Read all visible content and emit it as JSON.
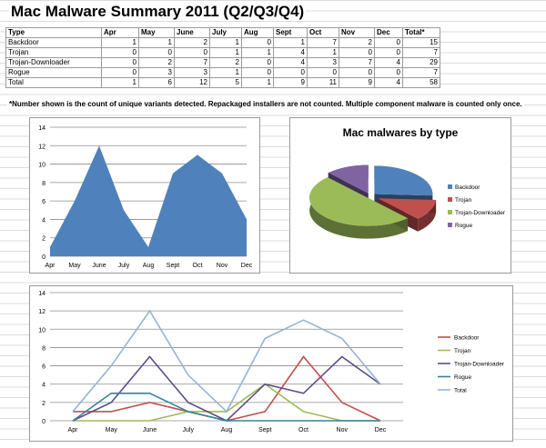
{
  "title": "Mac Malware Summary 2011 (Q2/Q3/Q4)",
  "table": {
    "headers": [
      "Type",
      "Apr",
      "May",
      "June",
      "July",
      "Aug",
      "Sept",
      "Oct",
      "Nov",
      "Dec",
      "Total*"
    ],
    "rows": [
      [
        "Backdoor",
        "1",
        "1",
        "2",
        "1",
        "0",
        "1",
        "7",
        "2",
        "0",
        "15"
      ],
      [
        "Trojan",
        "0",
        "0",
        "0",
        "1",
        "1",
        "4",
        "1",
        "0",
        "0",
        "7"
      ],
      [
        "Trojan-Downloader",
        "0",
        "2",
        "7",
        "2",
        "0",
        "4",
        "3",
        "7",
        "4",
        "29"
      ],
      [
        "Rogue",
        "0",
        "3",
        "3",
        "1",
        "0",
        "0",
        "0",
        "0",
        "0",
        "7"
      ],
      [
        "Total",
        "1",
        "6",
        "12",
        "5",
        "1",
        "9",
        "11",
        "9",
        "4",
        "58"
      ]
    ]
  },
  "note": "*Number shown is the count of unique variants detected. Repackaged installers are not counted. Multiple component malware is counted only once.",
  "chart_data": [
    {
      "type": "area",
      "categories": [
        "Apr",
        "May",
        "June",
        "July",
        "Aug",
        "Sept",
        "Oct",
        "Nov",
        "Dec"
      ],
      "series": [
        {
          "values": [
            1,
            6,
            12,
            5,
            1,
            9,
            11,
            9,
            4
          ],
          "color": "#4f81bd"
        }
      ],
      "ylim": [
        0,
        14
      ],
      "yticks": [
        0,
        2,
        4,
        6,
        8,
        10,
        12,
        14
      ],
      "grid": true
    },
    {
      "type": "pie",
      "title": "Mac malwares by type",
      "labels": [
        "Backdoor",
        "Trojan",
        "Trojan-Downloader",
        "Rogue"
      ],
      "values": [
        15,
        7,
        29,
        7
      ],
      "colors": [
        "#4f81bd",
        "#c0504d",
        "#9bbb59",
        "#8064a2"
      ],
      "legend": "right"
    },
    {
      "type": "line",
      "categories": [
        "Apr",
        "May",
        "June",
        "July",
        "Aug",
        "Sept",
        "Oct",
        "Nov",
        "Dec"
      ],
      "series": [
        {
          "name": "Backdoor",
          "values": [
            1,
            1,
            2,
            1,
            0,
            1,
            7,
            2,
            0
          ],
          "color": "#c0504d"
        },
        {
          "name": "Trojan",
          "values": [
            0,
            0,
            0,
            1,
            1,
            4,
            1,
            0,
            0
          ],
          "color": "#9bbb59"
        },
        {
          "name": "Trojan-Downloader",
          "values": [
            0,
            2,
            7,
            2,
            0,
            4,
            3,
            7,
            4
          ],
          "color": "#5f4b8b"
        },
        {
          "name": "Rogue",
          "values": [
            0,
            3,
            3,
            1,
            0,
            0,
            0,
            0,
            0
          ],
          "color": "#31859c"
        },
        {
          "name": "Total",
          "values": [
            1,
            6,
            12,
            5,
            1,
            9,
            11,
            9,
            4
          ],
          "color": "#95b3d7"
        }
      ],
      "ylim": [
        0,
        14
      ],
      "yticks": [
        0,
        2,
        4,
        6,
        8,
        10,
        12,
        14
      ],
      "grid": true,
      "legend": "right"
    }
  ]
}
